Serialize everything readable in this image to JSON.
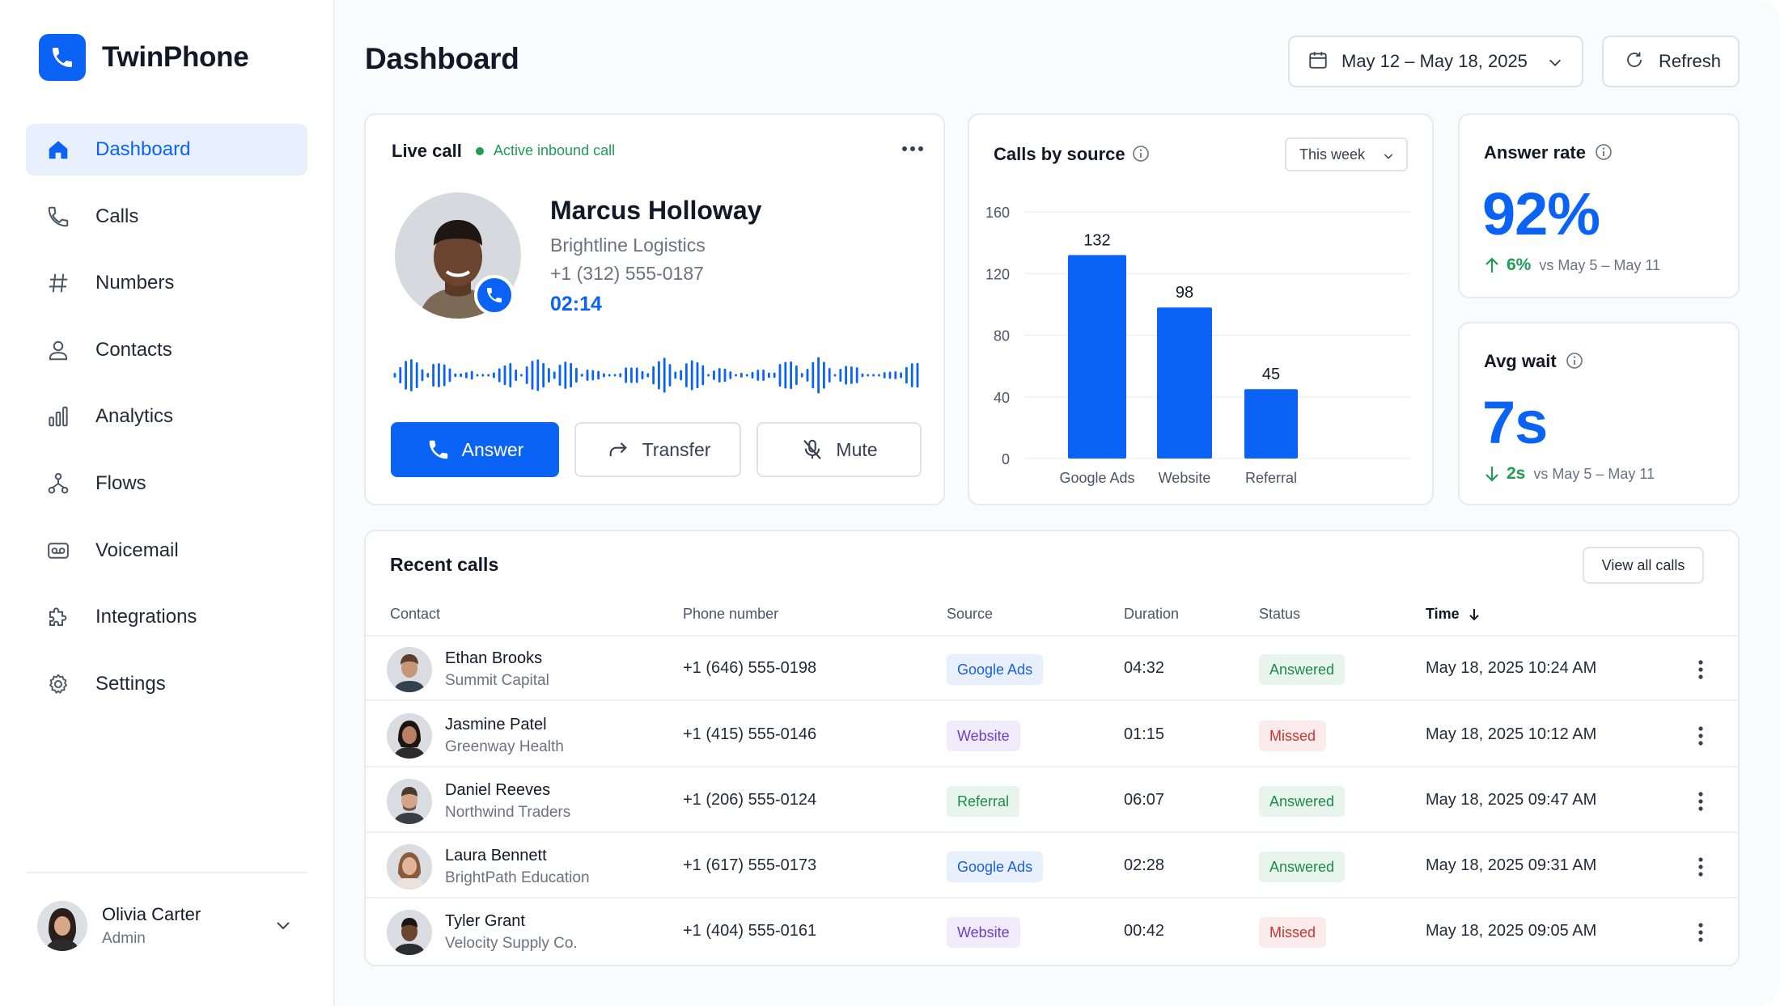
{
  "brand": {
    "name": "TwinPhone",
    "accent": "#0B63F6"
  },
  "sidebar": {
    "items": [
      {
        "label": "Dashboard",
        "icon": "home-icon",
        "active": true
      },
      {
        "label": "Calls",
        "icon": "phone-icon"
      },
      {
        "label": "Numbers",
        "icon": "hash-icon"
      },
      {
        "label": "Contacts",
        "icon": "user-icon"
      },
      {
        "label": "Analytics",
        "icon": "bar-chart-icon"
      },
      {
        "label": "Flows",
        "icon": "flow-icon"
      },
      {
        "label": "Voicemail",
        "icon": "voicemail-icon"
      },
      {
        "label": "Integrations",
        "icon": "puzzle-icon"
      },
      {
        "label": "Settings",
        "icon": "gear-icon"
      }
    ],
    "user": {
      "name": "Olivia Carter",
      "role": "Admin"
    }
  },
  "header": {
    "title": "Dashboard",
    "date_range": "May 12 – May 18, 2025",
    "refresh_label": "Refresh"
  },
  "live_call": {
    "title": "Live call",
    "status": "Active inbound call",
    "caller_name": "Marcus Holloway",
    "company": "Brightline Logistics",
    "phone": "+1 (312) 555-0187",
    "timer": "02:14",
    "answer_label": "Answer",
    "transfer_label": "Transfer",
    "mute_label": "Mute"
  },
  "calls_by_source": {
    "title": "Calls by source",
    "period": "This week"
  },
  "chart_data": {
    "type": "bar",
    "categories": [
      "Google Ads",
      "Website",
      "Referral"
    ],
    "values": [
      132,
      98,
      45
    ],
    "ylim": [
      0,
      160
    ],
    "yticks": [
      0,
      40,
      80,
      120,
      160
    ],
    "data_labels": [
      "132",
      "98",
      "45"
    ],
    "color": "#0B63F6",
    "grid": true
  },
  "answer_rate": {
    "title": "Answer rate",
    "value": "92%",
    "delta": "6%",
    "delta_direction": "up",
    "comparison": "vs May 5 – May 11"
  },
  "avg_wait": {
    "title": "Avg wait",
    "value": "7s",
    "delta": "2s",
    "delta_direction": "down",
    "comparison": "vs May 5 – May 11"
  },
  "recent_calls": {
    "title": "Recent calls",
    "view_all_label": "View all calls",
    "columns": {
      "contact": "Contact",
      "phone": "Phone number",
      "source": "Source",
      "duration": "Duration",
      "status": "Status",
      "time": "Time"
    },
    "rows": [
      {
        "name": "Ethan Brooks",
        "company": "Summit Capital",
        "phone": "+1 (646) 555-0198",
        "source": "Google Ads",
        "duration": "04:32",
        "status": "Answered",
        "time": "May 18, 2025  10:24 AM"
      },
      {
        "name": "Jasmine Patel",
        "company": "Greenway Health",
        "phone": "+1 (415) 555-0146",
        "source": "Website",
        "duration": "01:15",
        "status": "Missed",
        "time": "May 18, 2025  10:12 AM"
      },
      {
        "name": "Daniel Reeves",
        "company": "Northwind Traders",
        "phone": "+1 (206) 555-0124",
        "source": "Referral",
        "duration": "06:07",
        "status": "Answered",
        "time": "May 18, 2025  09:47 AM"
      },
      {
        "name": "Laura Bennett",
        "company": "BrightPath Education",
        "phone": "+1 (617) 555-0173",
        "source": "Google Ads",
        "duration": "02:28",
        "status": "Answered",
        "time": "May 18, 2025  09:31 AM"
      },
      {
        "name": "Tyler Grant",
        "company": "Velocity Supply Co.",
        "phone": "+1 (404) 555-0161",
        "source": "Website",
        "duration": "00:42",
        "status": "Missed",
        "time": "May 18, 2025  09:05 AM"
      }
    ]
  },
  "colors": {
    "source_google_ads": {
      "bg": "#E8F0FD",
      "fg": "#1D5FD6"
    },
    "source_website": {
      "bg": "#F0ECFB",
      "fg": "#6D3FC8"
    },
    "source_referral": {
      "bg": "#E7F5EC",
      "fg": "#1F8A4C"
    },
    "status_answered": {
      "bg": "#E7F5EC",
      "fg": "#1F8A4C"
    },
    "status_missed": {
      "bg": "#FCEBEB",
      "fg": "#C93434"
    }
  }
}
